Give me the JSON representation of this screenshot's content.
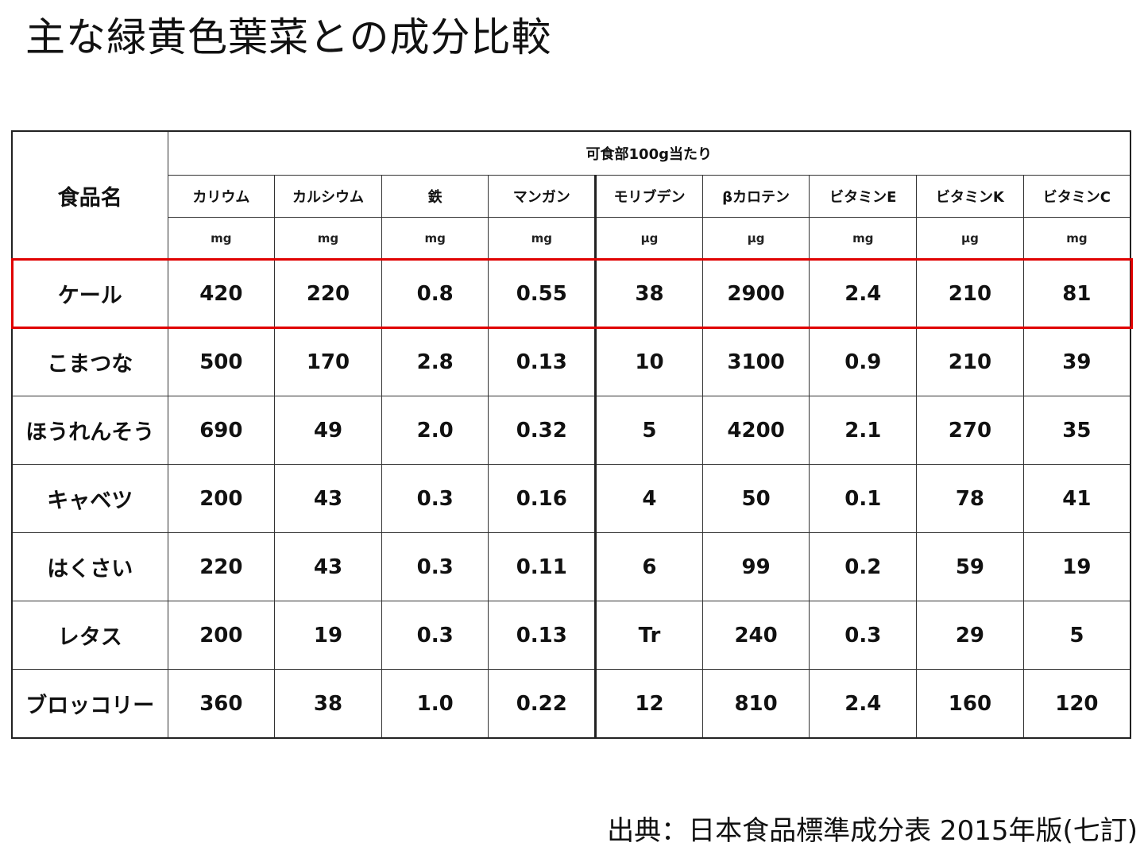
{
  "title": "主な緑黄色葉菜との成分比較",
  "table": {
    "food_name_header": "食品名",
    "group_header": "可食部100g当たり",
    "nutrients": [
      {
        "name": "カリウム",
        "unit": "mg"
      },
      {
        "name": "カルシウム",
        "unit": "mg"
      },
      {
        "name": "鉄",
        "unit": "mg"
      },
      {
        "name": "マンガン",
        "unit": "mg"
      },
      {
        "name": "モリブデン",
        "unit": "μg"
      },
      {
        "name": "βカロテン",
        "unit": "μg"
      },
      {
        "name": "ビタミンE",
        "unit": "mg"
      },
      {
        "name": "ビタミンK",
        "unit": "μg"
      },
      {
        "name": "ビタミンC",
        "unit": "mg"
      }
    ],
    "rows": [
      {
        "name": "ケール",
        "values": [
          "420",
          "220",
          "0.8",
          "0.55",
          "38",
          "2900",
          "2.4",
          "210",
          "81"
        ]
      },
      {
        "name": "こまつな",
        "values": [
          "500",
          "170",
          "2.8",
          "0.13",
          "10",
          "3100",
          "0.9",
          "210",
          "39"
        ]
      },
      {
        "name": "ほうれんそう",
        "values": [
          "690",
          "49",
          "2.0",
          "0.32",
          "5",
          "4200",
          "2.1",
          "270",
          "35"
        ]
      },
      {
        "name": "キャベツ",
        "values": [
          "200",
          "43",
          "0.3",
          "0.16",
          "4",
          "50",
          "0.1",
          "78",
          "41"
        ]
      },
      {
        "name": "はくさい",
        "values": [
          "220",
          "43",
          "0.3",
          "0.11",
          "6",
          "99",
          "0.2",
          "59",
          "19"
        ]
      },
      {
        "name": "レタス",
        "values": [
          "200",
          "19",
          "0.3",
          "0.13",
          "Tr",
          "240",
          "0.3",
          "29",
          "5"
        ]
      },
      {
        "name": "ブロッコリー",
        "values": [
          "360",
          "38",
          "1.0",
          "0.22",
          "12",
          "810",
          "2.4",
          "160",
          "120"
        ]
      }
    ],
    "highlight_color": "#e00000"
  },
  "source": "出典：日本食品標準成分表 2015年版(七訂)"
}
